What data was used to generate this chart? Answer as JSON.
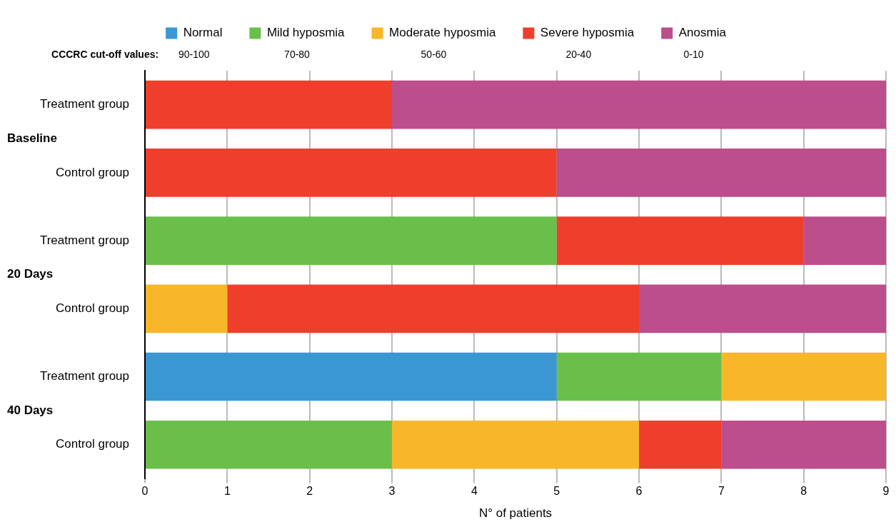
{
  "chart_data": {
    "type": "bar",
    "orientation": "horizontal",
    "stacked": true,
    "xlabel": "N° of patients",
    "categories": [
      "Treatment group",
      "Control group",
      "Treatment group",
      "Control group",
      "Treatment group",
      "Control group"
    ],
    "series": [
      {
        "name": "Normal",
        "color": "#3a97d4",
        "values": [
          null,
          null,
          null,
          null,
          5,
          null
        ]
      },
      {
        "name": "Mild hyposmia",
        "color": "#6abf4b",
        "values": [
          null,
          null,
          5,
          null,
          2,
          3
        ]
      },
      {
        "name": "Moderate hyposmia",
        "color": "#f8b72a",
        "values": [
          null,
          null,
          null,
          1,
          2,
          3
        ]
      },
      {
        "name": "Severe hyposmia",
        "color": "#ef3e2c",
        "values": [
          3,
          5,
          3,
          5,
          null,
          1
        ]
      },
      {
        "name": "Anosmia",
        "color": "#bc4e8b",
        "values": [
          6,
          4,
          1,
          3,
          null,
          2
        ]
      }
    ],
    "xlim": [
      0,
      9
    ],
    "xticks": [
      0,
      1,
      2,
      3,
      4,
      5,
      6,
      7,
      8,
      9
    ],
    "grid": "x",
    "legend": "top",
    "annotations": [
      "CCCRC cut-off values:",
      "90-100",
      "70-80",
      "50-60",
      "20-40",
      "0-10",
      "Baseline",
      "20 Days",
      "40 Days"
    ]
  }
}
